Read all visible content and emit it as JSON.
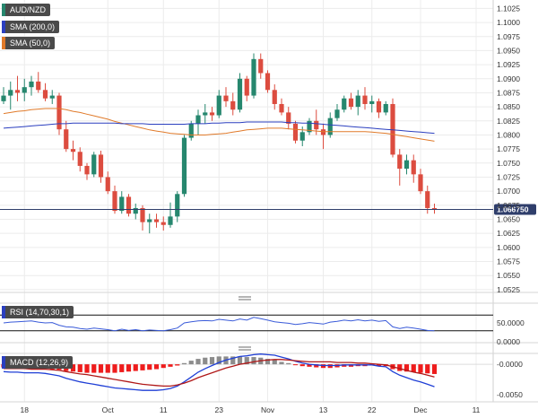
{
  "instrument": "AUD/NZD",
  "overlays": [
    {
      "label": "SMA (200,0)",
      "color": "#2b3fbf"
    },
    {
      "label": "SMA (50,0)",
      "color": "#e07a2a"
    }
  ],
  "price_badge": "1.066750",
  "colors": {
    "up": "#26876e",
    "down": "#dc4c3f",
    "sma200": "#2b3fbf",
    "sma50": "#e07a2a",
    "macd_line": "#1f3fd6",
    "signal_line": "#b01818",
    "rsi_line": "#3a5bd9",
    "hist_pos": "#8c8c8c",
    "hist_neg": "#ee1c1c"
  },
  "chart_data": [
    {
      "type": "candlestick",
      "title": "AUD/NZD",
      "yaxis_ticks": [
        "1.1025",
        "1.1000",
        "1.0975",
        "1.0950",
        "1.0925",
        "1.0900",
        "1.0875",
        "1.0850",
        "1.0825",
        "1.0800",
        "1.0775",
        "1.0750",
        "1.0725",
        "1.0700",
        "1.0675",
        "1.0650",
        "1.0625",
        "1.0600",
        "1.0575",
        "1.0550",
        "1.0525"
      ],
      "ylim": [
        1.052,
        1.104
      ],
      "xaxis_ticks": [
        "18",
        "Oct",
        "11",
        "23",
        "Nov",
        "13",
        "22",
        "Dec",
        "11"
      ],
      "current_price": 1.06675,
      "series": [
        {
          "name": "AUD/NZD",
          "ohlc": [
            [
              1.086,
              1.0885,
              1.0855,
              1.087
            ],
            [
              1.087,
              1.0895,
              1.0845,
              1.088
            ],
            [
              1.088,
              1.0905,
              1.086,
              1.0875
            ],
            [
              1.0875,
              1.09,
              1.086,
              1.0885
            ],
            [
              1.0885,
              1.0905,
              1.087,
              1.0895
            ],
            [
              1.0895,
              1.0912,
              1.0875,
              1.088
            ],
            [
              1.088,
              1.0892,
              1.086,
              1.0865
            ],
            [
              1.0865,
              1.088,
              1.0855,
              1.087
            ],
            [
              1.087,
              1.0875,
              1.08,
              1.081
            ],
            [
              1.081,
              1.0825,
              1.077,
              1.0775
            ],
            [
              1.0775,
              1.079,
              1.0755,
              1.077
            ],
            [
              1.077,
              1.0778,
              1.0735,
              1.0745
            ],
            [
              1.0745,
              1.075,
              1.072,
              1.073
            ],
            [
              1.073,
              1.077,
              1.0725,
              1.0765
            ],
            [
              1.0765,
              1.0772,
              1.0715,
              1.0725
            ],
            [
              1.0725,
              1.0735,
              1.0695,
              1.07
            ],
            [
              1.07,
              1.071,
              1.066,
              1.0665
            ],
            [
              1.0665,
              1.07,
              1.066,
              1.069
            ],
            [
              1.069,
              1.0695,
              1.0655,
              1.066
            ],
            [
              1.066,
              1.0678,
              1.065,
              1.067
            ],
            [
              1.067,
              1.0675,
              1.063,
              1.0645
            ],
            [
              1.0645,
              1.066,
              1.0625,
              1.065
            ],
            [
              1.065,
              1.066,
              1.0635,
              1.0645
            ],
            [
              1.0645,
              1.0655,
              1.063,
              1.064
            ],
            [
              1.064,
              1.068,
              1.0635,
              1.0655
            ],
            [
              1.0655,
              1.07,
              1.0645,
              1.0695
            ],
            [
              1.0695,
              1.08,
              1.069,
              1.0795
            ],
            [
              1.0795,
              1.0825,
              1.079,
              1.082
            ],
            [
              1.082,
              1.0845,
              1.08,
              1.0835
            ],
            [
              1.0835,
              1.0855,
              1.082,
              1.084
            ],
            [
              1.084,
              1.085,
              1.0825,
              1.0835
            ],
            [
              1.0835,
              1.088,
              1.083,
              1.087
            ],
            [
              1.087,
              1.0885,
              1.085,
              1.086
            ],
            [
              1.086,
              1.0875,
              1.0835,
              1.0845
            ],
            [
              1.0845,
              1.091,
              1.084,
              1.09
            ],
            [
              1.09,
              1.0905,
              1.086,
              1.087
            ],
            [
              1.087,
              1.0945,
              1.0865,
              1.0935
            ],
            [
              1.0935,
              1.0945,
              1.09,
              1.091
            ],
            [
              1.091,
              1.0915,
              1.0875,
              1.088
            ],
            [
              1.088,
              1.089,
              1.0845,
              1.0855
            ],
            [
              1.0855,
              1.0865,
              1.0835,
              1.084
            ],
            [
              1.084,
              1.085,
              1.081,
              1.082
            ],
            [
              1.082,
              1.0825,
              1.0785,
              1.079
            ],
            [
              1.079,
              1.0815,
              1.078,
              1.0805
            ],
            [
              1.0805,
              1.083,
              1.08,
              1.0825
            ],
            [
              1.0825,
              1.0845,
              1.08,
              1.081
            ],
            [
              1.081,
              1.082,
              1.0775,
              1.08
            ],
            [
              1.08,
              1.084,
              1.0795,
              1.083
            ],
            [
              1.083,
              1.0855,
              1.0825,
              1.0845
            ],
            [
              1.0845,
              1.087,
              1.084,
              1.0865
            ],
            [
              1.0865,
              1.0875,
              1.0845,
              1.085
            ],
            [
              1.085,
              1.088,
              1.0835,
              1.087
            ],
            [
              1.087,
              1.0885,
              1.0845,
              1.0855
            ],
            [
              1.0855,
              1.087,
              1.084,
              1.086
            ],
            [
              1.086,
              1.0865,
              1.083,
              1.084
            ],
            [
              1.084,
              1.086,
              1.0835,
              1.0855
            ],
            [
              1.0855,
              1.0865,
              1.076,
              1.0765
            ],
            [
              1.0765,
              1.0775,
              1.071,
              1.074
            ],
            [
              1.074,
              1.0765,
              1.073,
              1.0755
            ],
            [
              1.0755,
              1.0765,
              1.0715,
              1.073
            ],
            [
              1.073,
              1.074,
              1.0695,
              1.07
            ],
            [
              1.07,
              1.071,
              1.066,
              1.067
            ],
            [
              1.067,
              1.0678,
              1.066,
              1.06675
            ]
          ]
        },
        {
          "name": "SMA (50,0)",
          "values": [
            1.0838,
            1.084,
            1.0842,
            1.0843,
            1.0845,
            1.0846,
            1.0847,
            1.0847,
            1.0847,
            1.0845,
            1.0842,
            1.084,
            1.0837,
            1.0834,
            1.0831,
            1.0828,
            1.0824,
            1.0821,
            1.0818,
            1.0815,
            1.0812,
            1.0809,
            1.0807,
            1.0805,
            1.0803,
            1.0802,
            1.0801,
            1.08,
            1.08,
            1.08,
            1.0801,
            1.0802,
            1.0803,
            1.0805,
            1.0807,
            1.0809,
            1.081,
            1.0811,
            1.0812,
            1.0812,
            1.0812,
            1.0811,
            1.081,
            1.0809,
            1.0808,
            1.0807,
            1.0806,
            1.0806,
            1.0806,
            1.0806,
            1.0806,
            1.0806,
            1.0806,
            1.0805,
            1.0804,
            1.0803,
            1.0801,
            1.0799,
            1.0797,
            1.0795,
            1.0793,
            1.0791,
            1.0789
          ]
        },
        {
          "name": "SMA (200,0)",
          "values": [
            1.0812,
            1.0813,
            1.0814,
            1.0815,
            1.0816,
            1.0817,
            1.0818,
            1.0819,
            1.082,
            1.082,
            1.0821,
            1.0821,
            1.0821,
            1.0821,
            1.0821,
            1.0821,
            1.0821,
            1.082,
            1.082,
            1.082,
            1.082,
            1.0819,
            1.0819,
            1.0819,
            1.0819,
            1.0819,
            1.0819,
            1.082,
            1.082,
            1.082,
            1.0821,
            1.0821,
            1.0822,
            1.0822,
            1.0822,
            1.0823,
            1.0823,
            1.0823,
            1.0823,
            1.0823,
            1.0823,
            1.0822,
            1.0822,
            1.0821,
            1.0821,
            1.082,
            1.0819,
            1.0818,
            1.0817,
            1.0816,
            1.0815,
            1.0814,
            1.0813,
            1.0812,
            1.0811,
            1.081,
            1.0809,
            1.0808,
            1.0807,
            1.0806,
            1.0805,
            1.0804,
            1.0803
          ]
        }
      ]
    },
    {
      "type": "line",
      "title": "RSI (14,70,30,1)",
      "yaxis_ticks": [
        "50.0000",
        "0.0000"
      ],
      "levels": [
        70,
        30
      ],
      "ylim": [
        0,
        100
      ],
      "series": [
        {
          "name": "RSI",
          "values": [
            50,
            52,
            53,
            54,
            55,
            52,
            50,
            51,
            44,
            40,
            39,
            36,
            34,
            37,
            35,
            33,
            30,
            34,
            31,
            33,
            30,
            32,
            31,
            30,
            33,
            37,
            50,
            53,
            55,
            56,
            55,
            59,
            57,
            55,
            60,
            57,
            64,
            61,
            57,
            53,
            51,
            49,
            46,
            48,
            51,
            49,
            47,
            52,
            54,
            57,
            55,
            58,
            55,
            57,
            54,
            56,
            40,
            36,
            39,
            37,
            34,
            31,
            30
          ]
        }
      ]
    },
    {
      "type": "bar",
      "title": "MACD (12,26,9)",
      "yaxis_ticks": [
        "-0.0000",
        "-0.0050"
      ],
      "ylim": [
        -0.0062,
        0.0018
      ],
      "series": [
        {
          "name": "Histogram",
          "values": [
            -0.0005,
            -0.0006,
            -0.0006,
            -0.0007,
            -0.0006,
            -0.0006,
            -0.0007,
            -0.0008,
            -0.0009,
            -0.0011,
            -0.0012,
            -0.0013,
            -0.0014,
            -0.0014,
            -0.0014,
            -0.0014,
            -0.0014,
            -0.0013,
            -0.0012,
            -0.0011,
            -0.001,
            -0.0009,
            -0.0008,
            -0.0006,
            -0.0004,
            -0.0002,
            0.0002,
            0.0006,
            0.0009,
            0.0011,
            0.0012,
            0.0013,
            0.0013,
            0.0013,
            0.0013,
            0.0012,
            0.0012,
            0.0011,
            0.0009,
            0.0007,
            0.0004,
            0.0002,
            -0.0001,
            -0.0003,
            -0.0004,
            -0.0005,
            -0.0006,
            -0.0006,
            -0.0005,
            -0.0004,
            -0.0004,
            -0.0003,
            -0.0003,
            -0.0002,
            -0.0003,
            -0.0003,
            -0.0008,
            -0.0011,
            -0.0012,
            -0.0013,
            -0.0014,
            -0.0015,
            -0.0016
          ]
        },
        {
          "name": "MACD",
          "values": [
            -0.0012,
            -0.0013,
            -0.0013,
            -0.0014,
            -0.0014,
            -0.0014,
            -0.0015,
            -0.0017,
            -0.0019,
            -0.0023,
            -0.0026,
            -0.0029,
            -0.0031,
            -0.0033,
            -0.0035,
            -0.0037,
            -0.0039,
            -0.004,
            -0.0041,
            -0.0042,
            -0.0043,
            -0.0043,
            -0.0043,
            -0.0042,
            -0.004,
            -0.0036,
            -0.0029,
            -0.0021,
            -0.0013,
            -0.0007,
            -0.0002,
            0.0003,
            0.0007,
            0.001,
            0.0013,
            0.0014,
            0.0016,
            0.0017,
            0.0016,
            0.0015,
            0.0012,
            0.0009,
            0.0005,
            0.0002,
            0.0,
            -0.0001,
            -0.0002,
            -0.0002,
            -0.0002,
            -0.0001,
            -0.0001,
            -0.0001,
            -0.0001,
            -0.0001,
            -0.0003,
            -0.0004,
            -0.0012,
            -0.0018,
            -0.0022,
            -0.0026,
            -0.0029,
            -0.0033,
            -0.0037
          ]
        },
        {
          "name": "Signal",
          "values": [
            -0.0007,
            -0.0007,
            -0.0007,
            -0.0007,
            -0.0008,
            -0.0008,
            -0.0008,
            -0.0009,
            -0.001,
            -0.0012,
            -0.0014,
            -0.0016,
            -0.0017,
            -0.0019,
            -0.0021,
            -0.0023,
            -0.0025,
            -0.0027,
            -0.0029,
            -0.0031,
            -0.0033,
            -0.0034,
            -0.0035,
            -0.0036,
            -0.0036,
            -0.0034,
            -0.0031,
            -0.0027,
            -0.0022,
            -0.0018,
            -0.0014,
            -0.001,
            -0.0006,
            -0.0003,
            0.0,
            0.0002,
            0.0004,
            0.0006,
            0.0007,
            0.0008,
            0.0008,
            0.0007,
            0.0006,
            0.0005,
            0.0004,
            0.0004,
            0.0004,
            0.0004,
            0.0003,
            0.0003,
            0.0003,
            0.0002,
            0.0002,
            0.0001,
            0.0,
            -0.0001,
            -0.0004,
            -0.0007,
            -0.001,
            -0.0013,
            -0.0015,
            -0.0018,
            -0.0021
          ]
        }
      ]
    }
  ]
}
